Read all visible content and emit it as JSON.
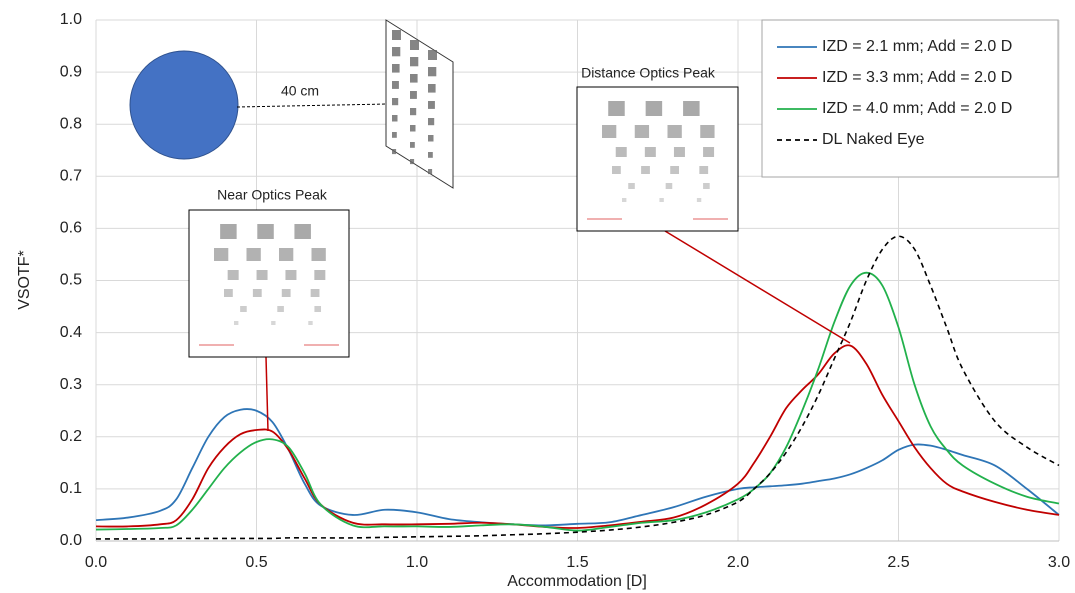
{
  "chart_data": {
    "type": "line",
    "x_label": "Accommodation [D]",
    "y_label": "VSOTF*",
    "annotations": {
      "distance_label": "40 cm",
      "near_peak": "Near Optics Peak",
      "distance_peak": "Distance Optics Peak"
    },
    "x": [
      0,
      0.1,
      0.2,
      0.25,
      0.3,
      0.35,
      0.4,
      0.45,
      0.5,
      0.55,
      0.6,
      0.65,
      0.7,
      0.8,
      0.9,
      1.0,
      1.1,
      1.2,
      1.3,
      1.4,
      1.5,
      1.6,
      1.7,
      1.8,
      1.9,
      2.0,
      2.05,
      2.1,
      2.15,
      2.2,
      2.25,
      2.3,
      2.35,
      2.4,
      2.45,
      2.5,
      2.55,
      2.6,
      2.65,
      2.7,
      2.8,
      2.9,
      3.0
    ],
    "series": [
      {
        "name": "IZD = 2.1 mm; Add = 2.0 D",
        "color": "#2e75b6",
        "line_style": "solid",
        "values": [
          0.04,
          0.045,
          0.058,
          0.08,
          0.14,
          0.2,
          0.238,
          0.252,
          0.25,
          0.228,
          0.175,
          0.11,
          0.068,
          0.05,
          0.06,
          0.055,
          0.042,
          0.036,
          0.032,
          0.03,
          0.033,
          0.036,
          0.05,
          0.065,
          0.085,
          0.1,
          0.103,
          0.105,
          0.107,
          0.11,
          0.115,
          0.12,
          0.128,
          0.14,
          0.155,
          0.175,
          0.185,
          0.183,
          0.175,
          0.165,
          0.145,
          0.1,
          0.05
        ]
      },
      {
        "name": "IZD = 3.3 mm; Add = 2.0 D",
        "color": "#c00000",
        "line_style": "solid",
        "values": [
          0.028,
          0.028,
          0.032,
          0.04,
          0.08,
          0.14,
          0.18,
          0.205,
          0.213,
          0.21,
          0.175,
          0.12,
          0.07,
          0.035,
          0.032,
          0.032,
          0.033,
          0.035,
          0.032,
          0.027,
          0.025,
          0.03,
          0.037,
          0.045,
          0.07,
          0.11,
          0.15,
          0.2,
          0.255,
          0.29,
          0.32,
          0.36,
          0.375,
          0.34,
          0.28,
          0.23,
          0.18,
          0.14,
          0.11,
          0.095,
          0.075,
          0.06,
          0.05
        ]
      },
      {
        "name": "IZD = 4.0 mm; Add = 2.0 D",
        "color": "#22b14c",
        "line_style": "solid",
        "values": [
          0.022,
          0.023,
          0.025,
          0.03,
          0.06,
          0.1,
          0.14,
          0.17,
          0.19,
          0.195,
          0.18,
          0.13,
          0.07,
          0.03,
          0.028,
          0.028,
          0.027,
          0.03,
          0.032,
          0.027,
          0.02,
          0.027,
          0.035,
          0.04,
          0.055,
          0.08,
          0.1,
          0.13,
          0.18,
          0.25,
          0.33,
          0.42,
          0.49,
          0.515,
          0.49,
          0.41,
          0.3,
          0.22,
          0.175,
          0.145,
          0.11,
          0.085,
          0.072
        ]
      },
      {
        "name": "DL Naked Eye",
        "color": "#000000",
        "line_style": "dashed",
        "values": [
          0.004,
          0.004,
          0.004,
          0.005,
          0.005,
          0.005,
          0.005,
          0.005,
          0.005,
          0.005,
          0.006,
          0.006,
          0.006,
          0.006,
          0.007,
          0.008,
          0.009,
          0.01,
          0.012,
          0.014,
          0.017,
          0.021,
          0.027,
          0.036,
          0.05,
          0.075,
          0.1,
          0.13,
          0.17,
          0.22,
          0.28,
          0.35,
          0.42,
          0.5,
          0.56,
          0.585,
          0.56,
          0.49,
          0.41,
          0.33,
          0.23,
          0.18,
          0.145
        ]
      }
    ],
    "xlim": [
      0,
      3
    ],
    "ylim": [
      0,
      1
    ],
    "xticks": [
      {
        "value": 0,
        "label": "0.0"
      },
      0.5,
      {
        "value": 1,
        "label": "1.0"
      },
      1.5,
      {
        "value": 2,
        "label": "2.0"
      },
      2.5,
      {
        "value": 3,
        "label": "3.0"
      }
    ],
    "yticks": [
      {
        "value": 0,
        "label": "0.0"
      },
      0.1,
      0.2,
      0.3,
      0.4,
      0.5,
      0.6,
      0.7,
      0.8,
      0.9,
      {
        "value": 1,
        "label": "1.0"
      }
    ],
    "grid": true,
    "legend": "upper right"
  }
}
